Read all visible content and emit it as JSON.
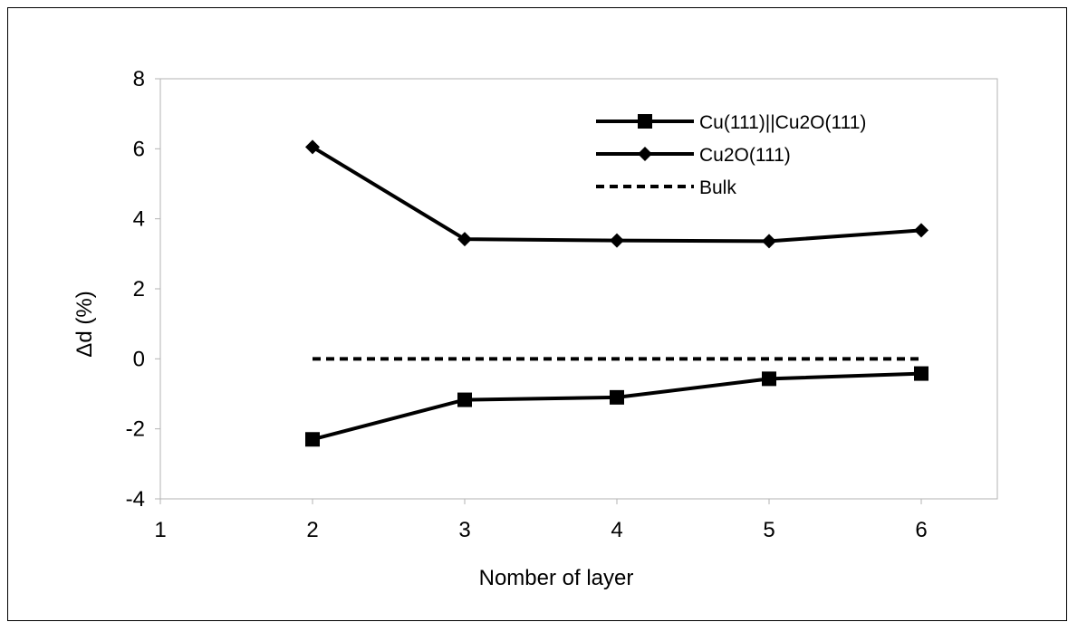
{
  "chart_data": {
    "type": "line",
    "title": "",
    "xlabel": "Nomber of layer",
    "ylabel": "Δd (%)",
    "xlim": [
      1,
      6.5
    ],
    "ylim": [
      -4,
      8
    ],
    "x_ticks": [
      1,
      2,
      3,
      4,
      5,
      6
    ],
    "y_ticks": [
      -4,
      -2,
      0,
      2,
      4,
      6,
      8
    ],
    "grid": false,
    "legend_position": "top-right",
    "series": [
      {
        "name": "Cu(111)||Cu2O(111)",
        "marker": "square",
        "style": "solid",
        "color": "#000000",
        "x": [
          2,
          3,
          4,
          5,
          6
        ],
        "y": [
          -2.3,
          -1.17,
          -1.1,
          -0.57,
          -0.42
        ]
      },
      {
        "name": "Cu2O(111)",
        "marker": "diamond",
        "style": "solid",
        "color": "#000000",
        "x": [
          2,
          3,
          4,
          5,
          6
        ],
        "y": [
          6.05,
          3.42,
          3.38,
          3.36,
          3.67
        ]
      },
      {
        "name": "Bulk",
        "marker": "none",
        "style": "dashed",
        "color": "#000000",
        "x": [
          2,
          6
        ],
        "y": [
          0,
          0
        ]
      }
    ]
  }
}
